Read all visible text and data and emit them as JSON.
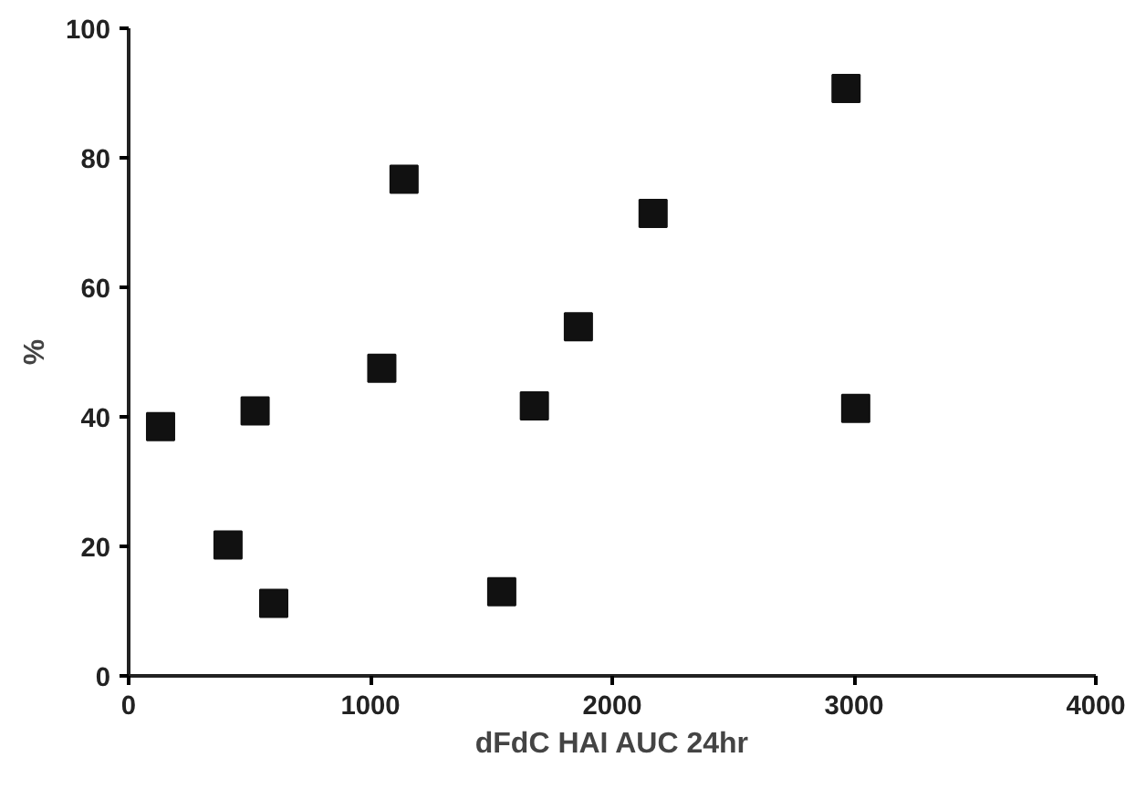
{
  "chart_data": {
    "type": "scatter",
    "xlabel": "dFdC HAI AUC 24hr",
    "ylabel": "%",
    "x": [
      132,
      411,
      523,
      600,
      1047,
      1139,
      1543,
      1678,
      1860,
      2169,
      2967,
      3007
    ],
    "values": [
      38.5,
      20.2,
      40.9,
      11.2,
      47.5,
      76.7,
      13.0,
      41.7,
      53.9,
      71.4,
      90.7,
      41.3
    ],
    "color": "#111111",
    "marker": "square",
    "xlim": [
      0,
      4000
    ],
    "xticks": [
      0,
      1000,
      2000,
      3000,
      4000
    ],
    "ylim": [
      0,
      100
    ],
    "yticks": [
      0,
      20,
      40,
      60,
      80,
      100
    ],
    "grid": false
  }
}
